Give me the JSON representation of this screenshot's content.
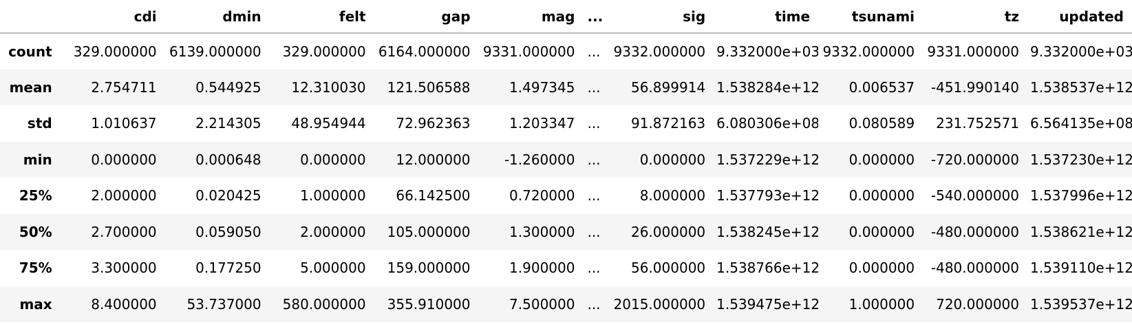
{
  "table": {
    "columns": [
      "cdi",
      "dmin",
      "felt",
      "gap",
      "mag",
      "...",
      "sig",
      "time",
      "tsunami",
      "tz",
      "updated"
    ],
    "rows": [
      {
        "label": "count",
        "cells": [
          "329.000000",
          "6139.000000",
          "329.000000",
          "6164.000000",
          "9331.000000",
          "...",
          "9332.000000",
          "9.332000e+03",
          "9332.000000",
          "9331.000000",
          "9.332000e+03"
        ]
      },
      {
        "label": "mean",
        "cells": [
          "2.754711",
          "0.544925",
          "12.310030",
          "121.506588",
          "1.497345",
          "...",
          "56.899914",
          "1.538284e+12",
          "0.006537",
          "-451.990140",
          "1.538537e+12"
        ]
      },
      {
        "label": "std",
        "cells": [
          "1.010637",
          "2.214305",
          "48.954944",
          "72.962363",
          "1.203347",
          "...",
          "91.872163",
          "6.080306e+08",
          "0.080589",
          "231.752571",
          "6.564135e+08"
        ]
      },
      {
        "label": "min",
        "cells": [
          "0.000000",
          "0.000648",
          "0.000000",
          "12.000000",
          "-1.260000",
          "...",
          "0.000000",
          "1.537229e+12",
          "0.000000",
          "-720.000000",
          "1.537230e+12"
        ]
      },
      {
        "label": "25%",
        "cells": [
          "2.000000",
          "0.020425",
          "1.000000",
          "66.142500",
          "0.720000",
          "...",
          "8.000000",
          "1.537793e+12",
          "0.000000",
          "-540.000000",
          "1.537996e+12"
        ]
      },
      {
        "label": "50%",
        "cells": [
          "2.700000",
          "0.059050",
          "2.000000",
          "105.000000",
          "1.300000",
          "...",
          "26.000000",
          "1.538245e+12",
          "0.000000",
          "-480.000000",
          "1.538621e+12"
        ]
      },
      {
        "label": "75%",
        "cells": [
          "3.300000",
          "0.177250",
          "5.000000",
          "159.000000",
          "1.900000",
          "...",
          "56.000000",
          "1.538766e+12",
          "0.000000",
          "-480.000000",
          "1.539110e+12"
        ]
      },
      {
        "label": "max",
        "cells": [
          "8.400000",
          "53.737000",
          "580.000000",
          "355.910000",
          "7.500000",
          "...",
          "2015.000000",
          "1.539475e+12",
          "1.000000",
          "720.000000",
          "1.539537e+12"
        ]
      }
    ]
  }
}
